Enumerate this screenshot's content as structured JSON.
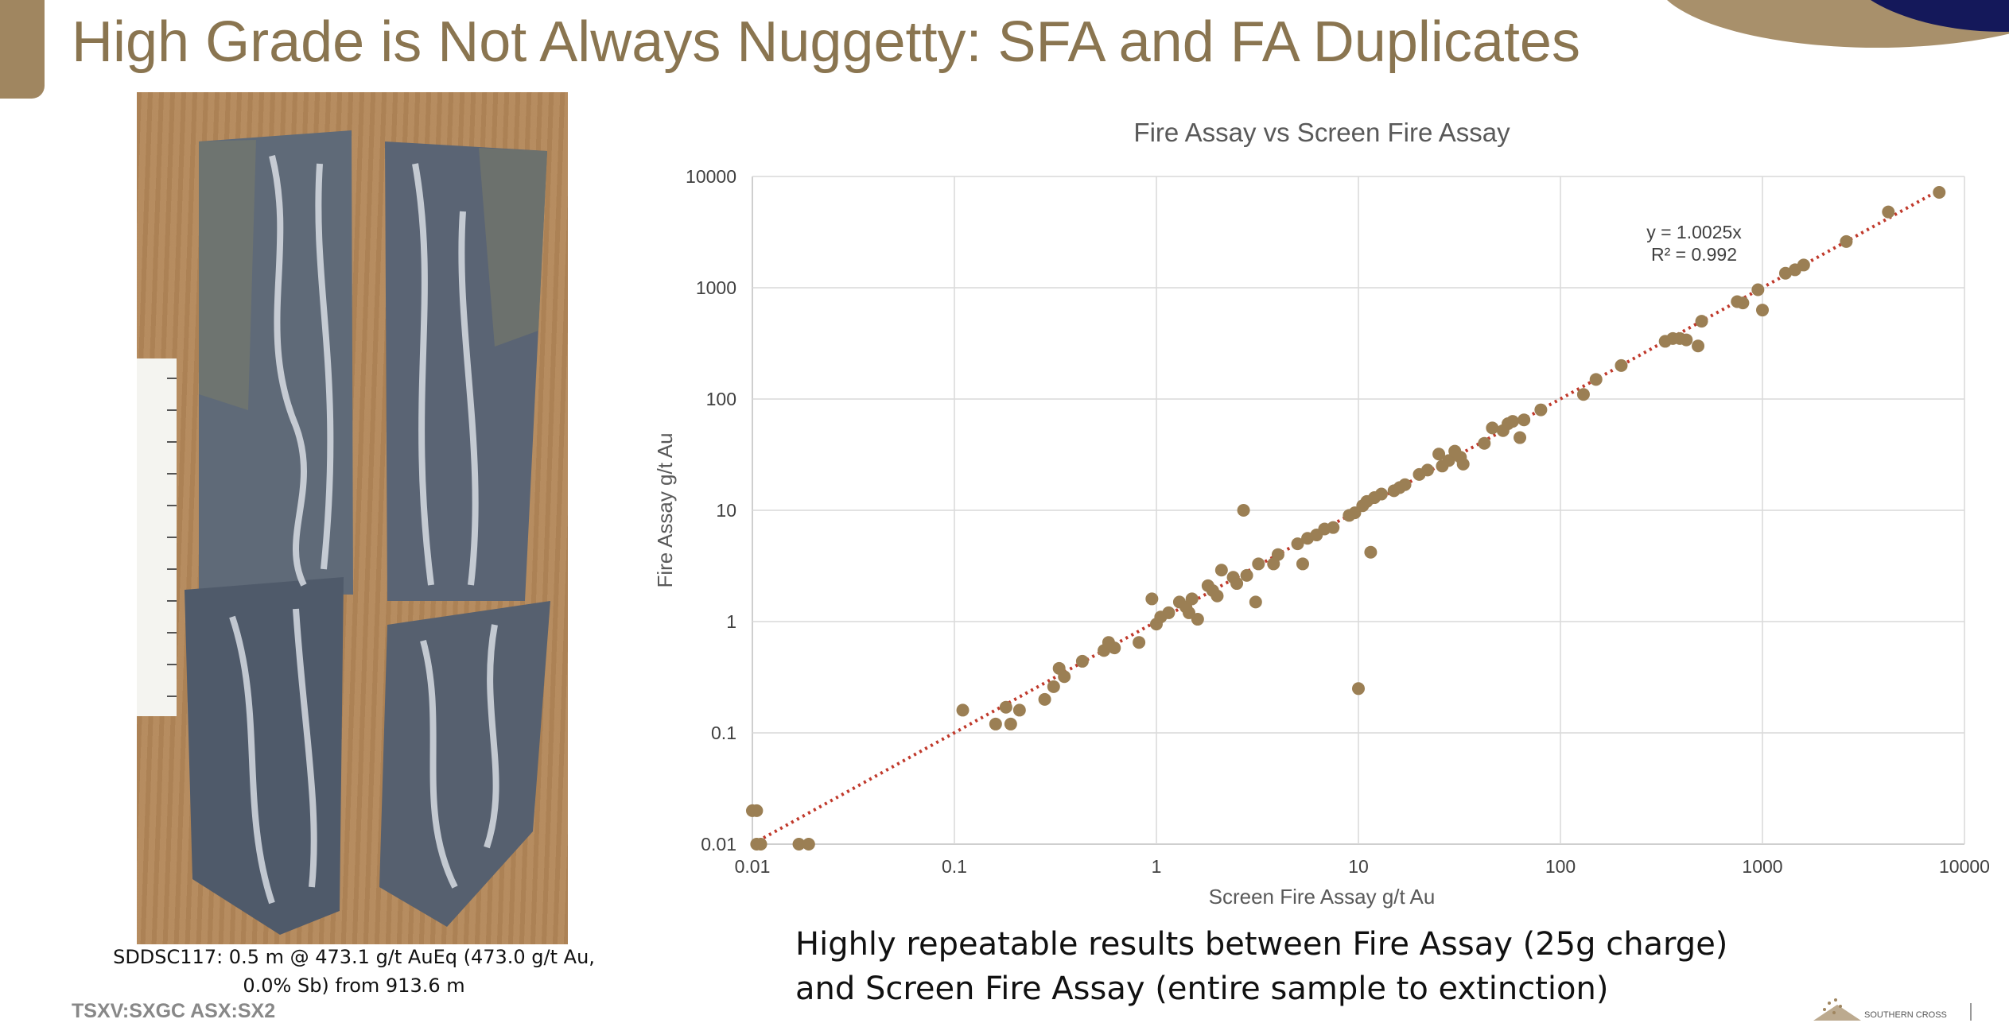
{
  "slide": {
    "title": "High Grade is Not Always Nuggetty: SFA and FA Duplicates",
    "photo_caption": "SDDSC117: 0.5 m @ 473.1 g/t AuEq (473.0 g/t Au, 0.0% Sb) from 913.6 m",
    "ticker": "TSXV:SXGC   ASX:SX2",
    "conclusion_line1": "Highly repeatable results between Fire Assay (25g charge)",
    "conclusion_line2": "and Screen Fire Assay (entire sample to extinction)",
    "logo_text": "SOUTHERN CROSS"
  },
  "colors": {
    "title": "#8a7550",
    "accent": "#a08660",
    "points": "#9b7f54",
    "trendline": "#c0392b",
    "grid": "#d9d9d9"
  },
  "chart_data": {
    "type": "scatter",
    "title": "Fire Assay vs Screen Fire Assay",
    "xlabel": "Screen Fire Assay g/t Au",
    "ylabel": "Fire Assay g/t Au",
    "scale": "log",
    "xlim": [
      0.01,
      10000
    ],
    "ylim": [
      0.01,
      10000
    ],
    "tick_labels": [
      "0.01",
      "0.1",
      "1",
      "10",
      "100",
      "1000",
      "10000"
    ],
    "grid": true,
    "legend": "none",
    "trendline": {
      "equation": "y = 1.0025x",
      "r_squared": "R² = 0.992",
      "slope": 1.0025
    },
    "points": [
      [
        0.01,
        0.02
      ],
      [
        0.0105,
        0.02
      ],
      [
        0.0105,
        0.01
      ],
      [
        0.011,
        0.01
      ],
      [
        0.017,
        0.01
      ],
      [
        0.019,
        0.01
      ],
      [
        0.11,
        0.16
      ],
      [
        0.16,
        0.12
      ],
      [
        0.18,
        0.17
      ],
      [
        0.19,
        0.12
      ],
      [
        0.21,
        0.16
      ],
      [
        0.28,
        0.2
      ],
      [
        0.31,
        0.26
      ],
      [
        0.33,
        0.38
      ],
      [
        0.35,
        0.32
      ],
      [
        0.43,
        0.44
      ],
      [
        0.55,
        0.55
      ],
      [
        0.58,
        0.65
      ],
      [
        0.62,
        0.58
      ],
      [
        0.82,
        0.65
      ],
      [
        0.95,
        1.6
      ],
      [
        1.0,
        0.95
      ],
      [
        1.05,
        1.1
      ],
      [
        1.15,
        1.2
      ],
      [
        1.3,
        1.5
      ],
      [
        1.4,
        1.35
      ],
      [
        1.5,
        1.6
      ],
      [
        1.45,
        1.2
      ],
      [
        1.6,
        1.05
      ],
      [
        1.8,
        2.1
      ],
      [
        1.9,
        1.9
      ],
      [
        2.0,
        1.7
      ],
      [
        2.1,
        2.9
      ],
      [
        2.4,
        2.5
      ],
      [
        2.5,
        2.2
      ],
      [
        2.8,
        2.6
      ],
      [
        2.7,
        10
      ],
      [
        3.1,
        1.5
      ],
      [
        3.2,
        3.3
      ],
      [
        3.8,
        3.3
      ],
      [
        4.0,
        4.0
      ],
      [
        5.0,
        5.0
      ],
      [
        5.3,
        3.3
      ],
      [
        5.6,
        5.6
      ],
      [
        6.2,
        6.0
      ],
      [
        6.8,
        6.8
      ],
      [
        7.5,
        7.0
      ],
      [
        9.0,
        9.0
      ],
      [
        9.6,
        9.5
      ],
      [
        10,
        0.25
      ],
      [
        10.5,
        11
      ],
      [
        11,
        12
      ],
      [
        11.5,
        4.2
      ],
      [
        12,
        13
      ],
      [
        13,
        14
      ],
      [
        15,
        15
      ],
      [
        16,
        16
      ],
      [
        17,
        17
      ],
      [
        20,
        21
      ],
      [
        22,
        23
      ],
      [
        25,
        32
      ],
      [
        26,
        25
      ],
      [
        28,
        28
      ],
      [
        30,
        34
      ],
      [
        32,
        30
      ],
      [
        33,
        26
      ],
      [
        42,
        40
      ],
      [
        46,
        55
      ],
      [
        52,
        52
      ],
      [
        55,
        60
      ],
      [
        58,
        63
      ],
      [
        63,
        45
      ],
      [
        66,
        65
      ],
      [
        80,
        80
      ],
      [
        130,
        110
      ],
      [
        150,
        150
      ],
      [
        200,
        200
      ],
      [
        330,
        330
      ],
      [
        360,
        350
      ],
      [
        390,
        350
      ],
      [
        420,
        340
      ],
      [
        480,
        300
      ],
      [
        500,
        500
      ],
      [
        750,
        750
      ],
      [
        800,
        730
      ],
      [
        950,
        960
      ],
      [
        1000,
        630
      ],
      [
        1300,
        1350
      ],
      [
        1450,
        1450
      ],
      [
        1600,
        1600
      ],
      [
        2600,
        2600
      ],
      [
        4200,
        4800
      ],
      [
        7500,
        7200
      ]
    ]
  }
}
